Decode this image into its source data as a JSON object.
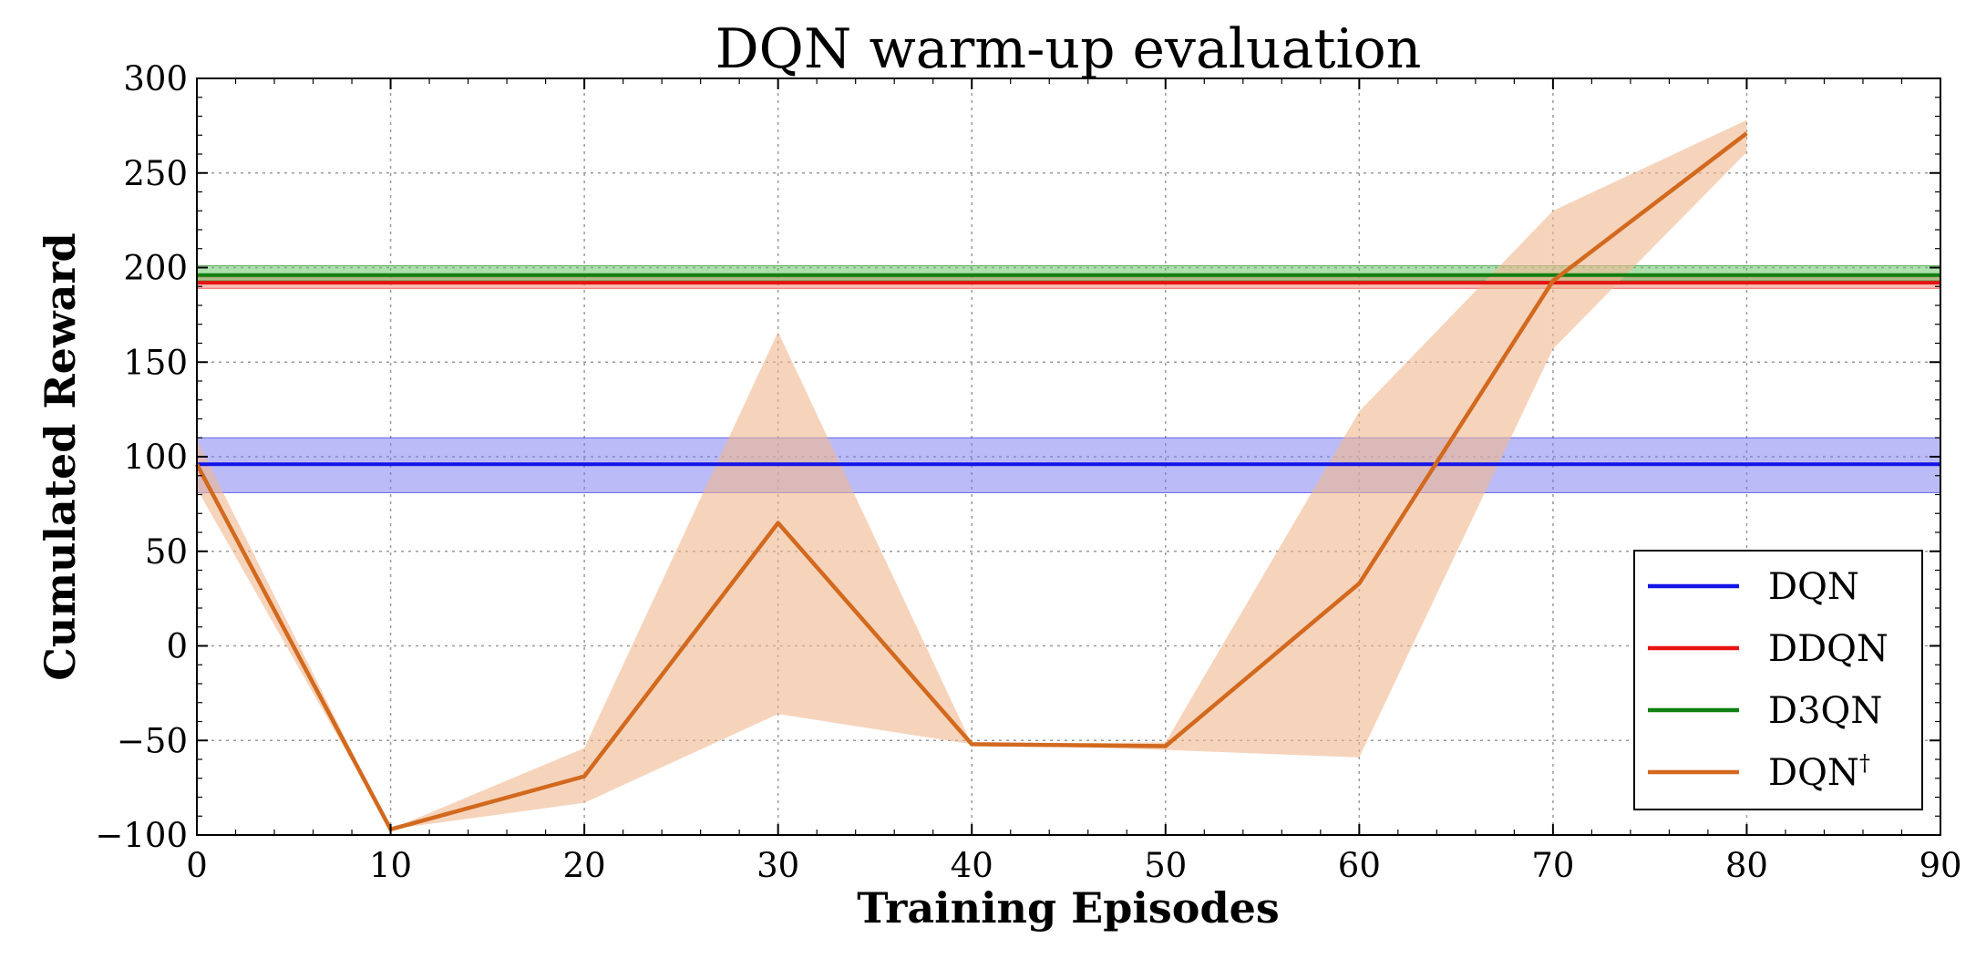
{
  "chart_data": {
    "type": "line",
    "title": "DQN warm-up evaluation",
    "xlabel": "Training Episodes",
    "ylabel": "Cumulated Reward",
    "xlim": [
      0,
      90
    ],
    "ylim": [
      -100,
      300
    ],
    "xticks": [
      0,
      10,
      20,
      30,
      40,
      50,
      60,
      70,
      80,
      90
    ],
    "yticks": [
      -100,
      -50,
      0,
      50,
      100,
      150,
      200,
      250,
      300
    ],
    "ytick_labels": [
      "−100",
      "−50",
      "0",
      "50",
      "100",
      "150",
      "200",
      "250",
      "300"
    ],
    "grid": true,
    "legend_position": "lower-right",
    "series": [
      {
        "name": "DQN",
        "legend_label": "DQN",
        "legend_sup": "",
        "kind": "hline",
        "color": "#1414e6",
        "band_color": "#7878f0",
        "value": 96,
        "band_low": 81,
        "band_high": 110
      },
      {
        "name": "DDQN",
        "legend_label": "DDQN",
        "legend_sup": "",
        "kind": "hline",
        "color": "#e61414",
        "band_color": "#f08070",
        "value": 192,
        "band_low": 189,
        "band_high": 195
      },
      {
        "name": "D3QN",
        "legend_label": "D3QN",
        "legend_sup": "",
        "kind": "hline",
        "color": "#108010",
        "band_color": "#60c060",
        "value": 196,
        "band_low": 193,
        "band_high": 201
      },
      {
        "name": "DQN†",
        "legend_label": "DQN",
        "legend_sup": "†",
        "kind": "line",
        "color": "#d2691e",
        "band_color": "#f0b890",
        "x": [
          0,
          10,
          20,
          30,
          40,
          50,
          60,
          70,
          80
        ],
        "y": [
          96,
          -97,
          -69,
          65,
          -52,
          -53,
          33,
          193,
          271
        ],
        "band_low": [
          83,
          -97,
          -83,
          -36,
          -52,
          -55,
          -59,
          157,
          261
        ],
        "band_high": [
          109,
          -97,
          -54,
          166,
          -52,
          -51,
          124,
          230,
          278
        ]
      }
    ]
  }
}
